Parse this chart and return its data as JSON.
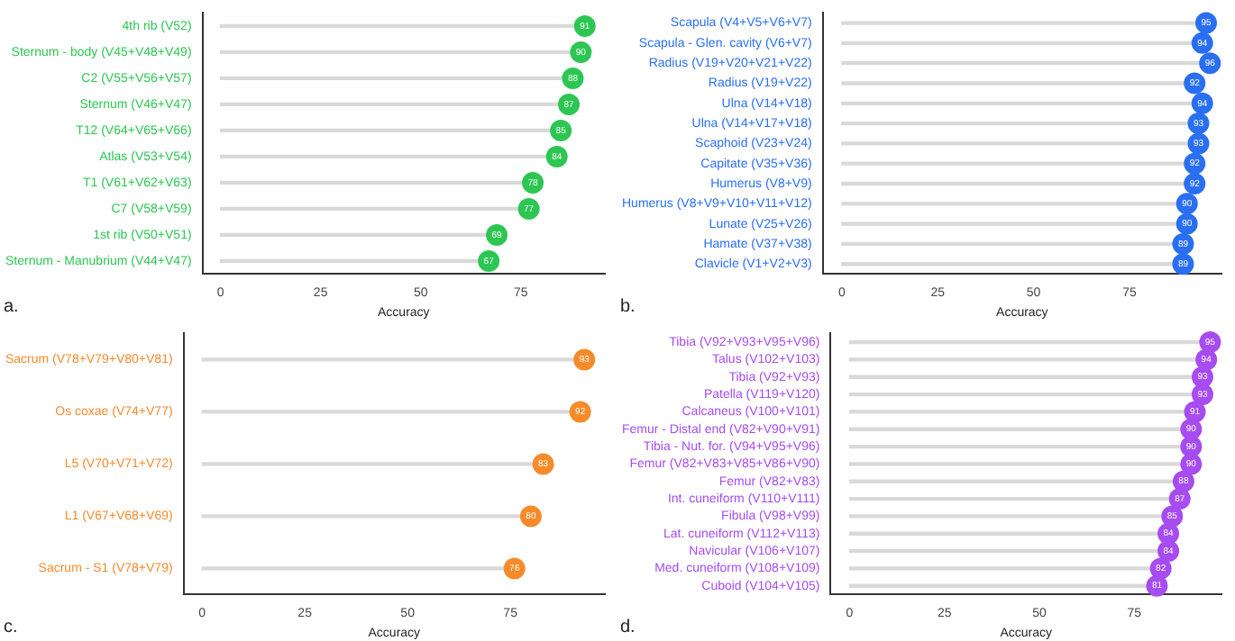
{
  "chart_data": [
    {
      "type": "lollipop",
      "orientation": "horizontal",
      "xlabel": "Accuracy",
      "annotations": [
        "a."
      ],
      "categories": [
        "4th rib (V52)",
        "Sternum - body (V45+V48+V49)",
        "C2 (V55+V56+V57)",
        "Sternum (V46+V47)",
        "T12 (V64+V65+V66)",
        "Atlas (V53+V54)",
        "T1 (V61+V62+V63)",
        "C7 (V58+V59)",
        "1st rib (V50+V51)",
        "Sternum - Manubrium (V44+V47)"
      ],
      "series": [
        {
          "color": "#2ec653",
          "values": [
            91,
            90,
            88,
            87,
            85,
            84,
            78,
            77,
            69,
            67
          ]
        }
      ],
      "xlim": [
        -4.5,
        96
      ],
      "xticks": [
        0,
        25,
        50,
        75
      ],
      "data_labels": true,
      "grid": false,
      "legend": false
    },
    {
      "type": "lollipop",
      "orientation": "horizontal",
      "xlabel": "Accuracy",
      "annotations": [
        "b."
      ],
      "categories": [
        "Scapula (V4+V5+V6+V7)",
        "Scapula - Glen. cavity (V6+V7)",
        "Radius (V19+V20+V21+V22)",
        "Radius (V19+V22)",
        "Ulna (V14+V18)",
        "Ulna (V14+V17+V18)",
        "Scaphoid (V23+V24)",
        "Capitate (V35+V36)",
        "Humerus (V8+V9)",
        "Humerus (V8+V9+V10+V11+V12)",
        "Lunate (V25+V26)",
        "Hamate (V37+V38)",
        "Clavicle (V1+V2+V3)"
      ],
      "series": [
        {
          "color": "#2a6ff2",
          "values": [
            95,
            94,
            96,
            92,
            94,
            93,
            93,
            92,
            92,
            90,
            90,
            89,
            89
          ]
        }
      ],
      "xlim": [
        -5,
        99
      ],
      "xticks": [
        0,
        25,
        50,
        75
      ],
      "data_labels": true,
      "grid": false,
      "legend": false
    },
    {
      "type": "lollipop",
      "orientation": "horizontal",
      "xlabel": "Accuracy",
      "annotations": [
        "c."
      ],
      "categories": [
        "Sacrum (V78+V79+V80+V81)",
        "Os coxae (V74+V77)",
        "L5 (V70+V71+V72)",
        "L1 (V67+V68+V69)",
        "Sacrum - S1 (V78+V79)"
      ],
      "series": [
        {
          "color": "#f68b2c",
          "values": [
            93,
            92,
            83,
            80,
            76
          ]
        }
      ],
      "xlim": [
        -4.5,
        98
      ],
      "xticks": [
        0,
        25,
        50,
        75
      ],
      "data_labels": true,
      "grid": false,
      "legend": false
    },
    {
      "type": "lollipop",
      "orientation": "horizontal",
      "xlabel": "Accuracy",
      "annotations": [
        "d."
      ],
      "categories": [
        "Tibia (V92+V93+V95+V96)",
        "Talus (V102+V103)",
        "Tibia (V92+V93)",
        "Patella (V119+V120)",
        "Calcaneus (V100+V101)",
        "Femur - Distal end (V82+V90+V91)",
        "Tibia - Nut. for. (V94+V95+V96)",
        "Femur (V82+V83+V85+V86+V90)",
        "Femur (V82+V83)",
        "Int. cuneiform (V110+V111)",
        "Fibula (V98+V99)",
        "Lat. cuneiform (V112+V113)",
        "Navicular (V106+V107)",
        "Med. cuneiform (V108+V109)",
        "Cuboid (V104+V105)"
      ],
      "series": [
        {
          "color": "#a64cf0",
          "values": [
            95,
            94,
            93,
            93,
            91,
            90,
            90,
            90,
            88,
            87,
            85,
            84,
            84,
            82,
            81
          ]
        }
      ],
      "xlim": [
        -5,
        98
      ],
      "xticks": [
        0,
        25,
        50,
        75
      ],
      "data_labels": true,
      "grid": false,
      "legend": false
    }
  ]
}
